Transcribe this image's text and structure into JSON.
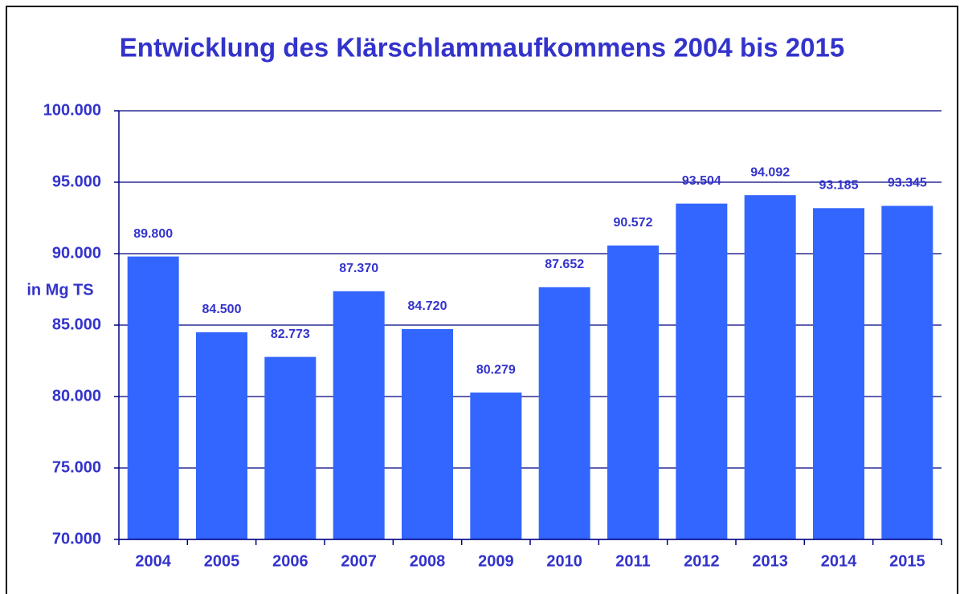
{
  "chart_data": {
    "type": "bar",
    "title": "Entwicklung des Klärschlammaufkommens 2004 bis 2015",
    "y_axis_label": "in Mg TS",
    "categories": [
      "2004",
      "2005",
      "2006",
      "2007",
      "2008",
      "2009",
      "2010",
      "2011",
      "2012",
      "2013",
      "2014",
      "2015"
    ],
    "values": [
      89800,
      84500,
      82773,
      87370,
      84720,
      80279,
      87652,
      90572,
      93504,
      94092,
      93185,
      93345
    ],
    "value_labels": [
      "89.800",
      "84.500",
      "82.773",
      "87.370",
      "84.720",
      "80.279",
      "87.652",
      "90.572",
      "93.504",
      "94.092",
      "93.185",
      "93.345"
    ],
    "color": "#3366ff",
    "ylim": [
      70000,
      100000
    ],
    "yticks": [
      {
        "value": 70000,
        "label": "70.000"
      },
      {
        "value": 75000,
        "label": "75.000"
      },
      {
        "value": 80000,
        "label": "80.000"
      },
      {
        "value": 85000,
        "label": "85.000"
      },
      {
        "value": 90000,
        "label": "90.000"
      },
      {
        "value": 95000,
        "label": "95.000"
      },
      {
        "value": 100000,
        "label": "100.000"
      }
    ],
    "grid": true
  }
}
